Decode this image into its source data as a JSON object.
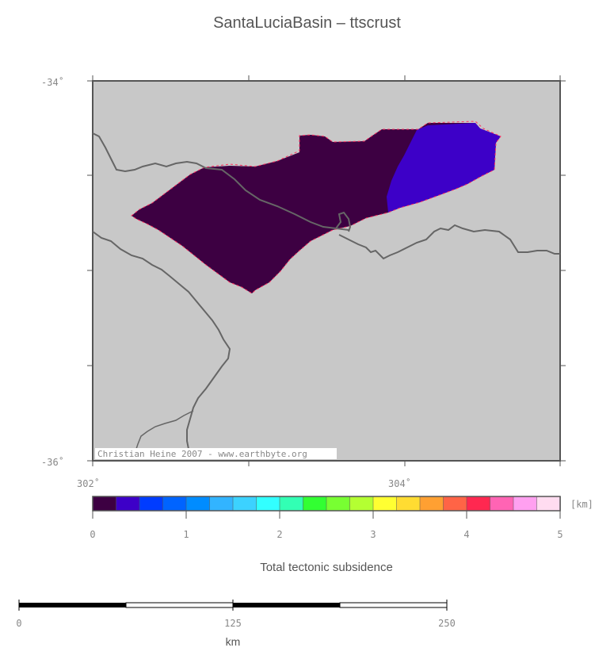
{
  "title": "SantaLuciaBasin – ttscrust",
  "map": {
    "lat_labels": [
      "-34˚",
      "-36˚"
    ],
    "lon_labels": [
      "302˚",
      "304˚"
    ],
    "credit": "Christian Heine 2007 - www.earthbyte.org",
    "background_color": "#c8c8c8",
    "dark_cell_color": "#3d0042",
    "blue_cell_color": "#3d00c8",
    "coastline_color": "#666666"
  },
  "colorbar": {
    "unit_label": "[km]",
    "tick_labels": [
      "0",
      "1",
      "2",
      "3",
      "4",
      "5"
    ],
    "caption": "Total tectonic subsidence",
    "colors": [
      "#3d0042",
      "#3d00c8",
      "#003cff",
      "#0064ff",
      "#008cff",
      "#32b4ff",
      "#3cd2ff",
      "#32ffff",
      "#32ffb4",
      "#32ff32",
      "#78ff32",
      "#b4ff32",
      "#ffff32",
      "#ffdc32",
      "#ffa032",
      "#ff6446",
      "#ff2850",
      "#ff64b4",
      "#ffa0f0",
      "#ffdcf0"
    ]
  },
  "scalebar": {
    "tick_labels": [
      "0",
      "125",
      "250"
    ],
    "unit": "km"
  }
}
